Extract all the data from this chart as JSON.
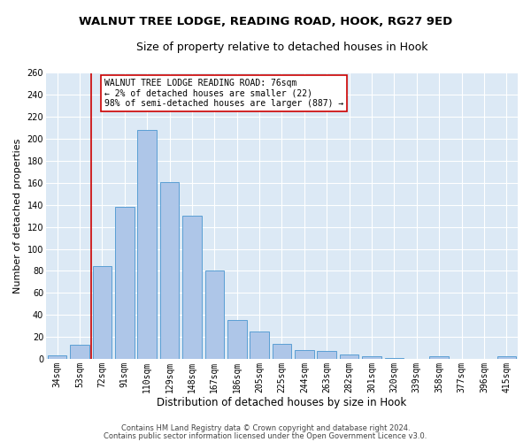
{
  "title1": "WALNUT TREE LODGE, READING ROAD, HOOK, RG27 9ED",
  "title2": "Size of property relative to detached houses in Hook",
  "xlabel": "Distribution of detached houses by size in Hook",
  "ylabel": "Number of detached properties",
  "bar_labels": [
    "34sqm",
    "53sqm",
    "72sqm",
    "91sqm",
    "110sqm",
    "129sqm",
    "148sqm",
    "167sqm",
    "186sqm",
    "205sqm",
    "225sqm",
    "244sqm",
    "263sqm",
    "282sqm",
    "301sqm",
    "320sqm",
    "339sqm",
    "358sqm",
    "377sqm",
    "396sqm",
    "415sqm"
  ],
  "bar_values": [
    3,
    13,
    84,
    138,
    208,
    161,
    130,
    80,
    35,
    25,
    14,
    8,
    7,
    4,
    2,
    1,
    0,
    2,
    0,
    0,
    2
  ],
  "bar_color": "#aec6e8",
  "bar_edge_color": "#5a9fd4",
  "vline_color": "#cc0000",
  "annotation_text": "WALNUT TREE LODGE READING ROAD: 76sqm\n← 2% of detached houses are smaller (22)\n98% of semi-detached houses are larger (887) →",
  "annotation_box_color": "#ffffff",
  "annotation_box_edge": "#cc0000",
  "ylim": [
    0,
    260
  ],
  "yticks": [
    0,
    20,
    40,
    60,
    80,
    100,
    120,
    140,
    160,
    180,
    200,
    220,
    240,
    260
  ],
  "footer1": "Contains HM Land Registry data © Crown copyright and database right 2024.",
  "footer2": "Contains public sector information licensed under the Open Government Licence v3.0.",
  "bg_color": "#dce9f5",
  "grid_color": "#ffffff",
  "fig_bg_color": "#ffffff",
  "title1_fontsize": 9.5,
  "title2_fontsize": 9,
  "xlabel_fontsize": 8.5,
  "ylabel_fontsize": 8,
  "tick_fontsize": 7,
  "annotation_fontsize": 7,
  "footer_fontsize": 6
}
